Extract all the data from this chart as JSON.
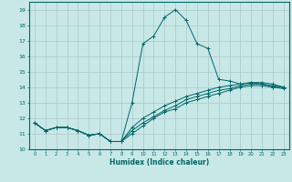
{
  "xlabel": "Humidex (Indice chaleur)",
  "bg_color": "#c8e8e8",
  "grid_color": "#b0cccc",
  "line_color": "#006666",
  "xlim": [
    -0.5,
    23.5
  ],
  "ylim": [
    10.0,
    19.5
  ],
  "yticks": [
    10,
    11,
    12,
    13,
    14,
    15,
    16,
    17,
    18,
    19
  ],
  "xticks": [
    0,
    1,
    2,
    3,
    4,
    5,
    6,
    7,
    8,
    9,
    10,
    11,
    12,
    13,
    14,
    15,
    16,
    17,
    18,
    19,
    20,
    21,
    22,
    23
  ],
  "series": [
    [
      11.7,
      11.2,
      11.4,
      11.4,
      11.2,
      10.9,
      11.0,
      10.5,
      10.5,
      13.0,
      16.8,
      17.3,
      18.5,
      19.0,
      18.3,
      16.8,
      16.5,
      14.5,
      14.4,
      14.2,
      14.3,
      14.2,
      14.0,
      14.0
    ],
    [
      11.7,
      11.2,
      11.4,
      11.4,
      11.2,
      10.9,
      11.0,
      10.5,
      10.5,
      11.0,
      11.5,
      12.0,
      12.4,
      12.6,
      13.0,
      13.2,
      13.4,
      13.6,
      13.8,
      14.0,
      14.1,
      14.1,
      14.0,
      13.9
    ],
    [
      11.7,
      11.2,
      11.4,
      11.4,
      11.2,
      10.9,
      11.0,
      10.5,
      10.5,
      11.2,
      11.7,
      12.1,
      12.5,
      12.8,
      13.2,
      13.4,
      13.6,
      13.8,
      13.9,
      14.1,
      14.2,
      14.2,
      14.1,
      14.0
    ],
    [
      11.7,
      11.2,
      11.4,
      11.4,
      11.2,
      10.9,
      11.0,
      10.5,
      10.5,
      11.4,
      12.0,
      12.4,
      12.8,
      13.1,
      13.4,
      13.6,
      13.8,
      14.0,
      14.1,
      14.2,
      14.3,
      14.3,
      14.2,
      14.0
    ]
  ]
}
